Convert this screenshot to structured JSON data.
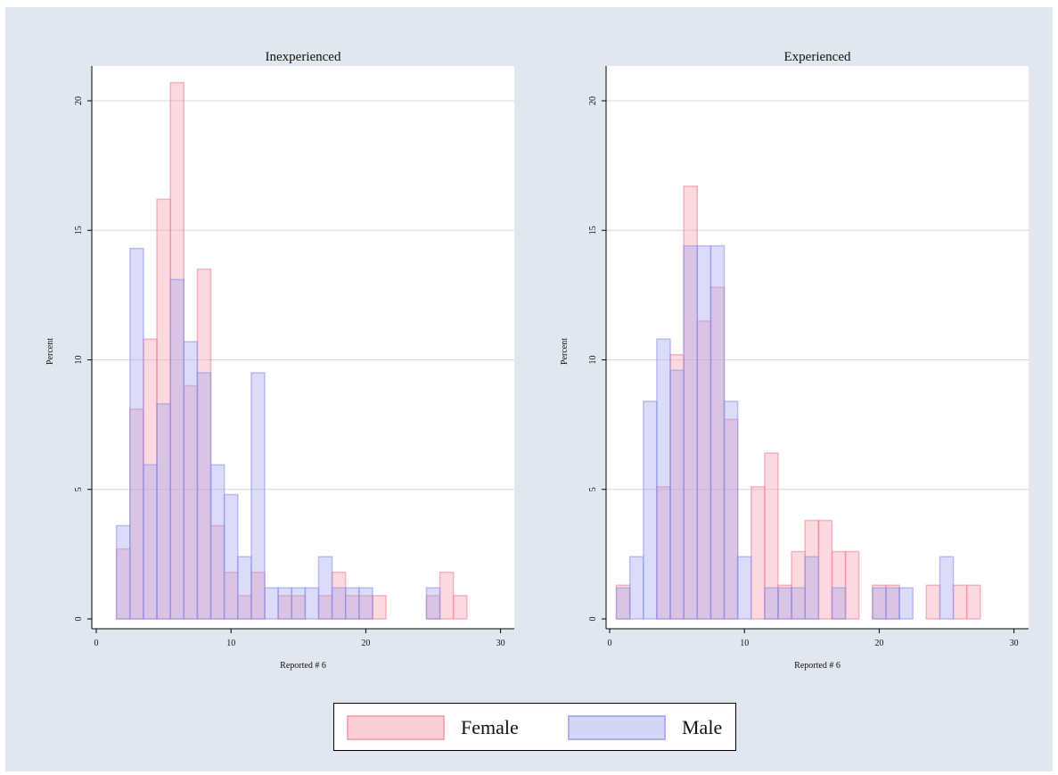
{
  "chart_data": [
    {
      "type": "bar",
      "title": "Inexperienced",
      "xlabel": "Reported # 6",
      "ylabel": "Percent",
      "xlim": [
        0,
        30
      ],
      "ylim": [
        0,
        21
      ],
      "xticks": [
        "0",
        "10",
        "20",
        "30"
      ],
      "yticks": [
        "0",
        "5",
        "10",
        "15",
        "20"
      ],
      "series": [
        {
          "name": "Female",
          "bins": [
            [
              2,
              2.7
            ],
            [
              3,
              8.1
            ],
            [
              4,
              10.8
            ],
            [
              5,
              16.2
            ],
            [
              6,
              20.7
            ],
            [
              7,
              9.0
            ],
            [
              8,
              13.5
            ],
            [
              9,
              3.6
            ],
            [
              10,
              1.8
            ],
            [
              11,
              0.9
            ],
            [
              12,
              1.8
            ],
            [
              14,
              0.9
            ],
            [
              15,
              0.9
            ],
            [
              17,
              0.9
            ],
            [
              18,
              1.8
            ],
            [
              19,
              0.9
            ],
            [
              20,
              0.9
            ],
            [
              21,
              0.9
            ],
            [
              25,
              0.9
            ],
            [
              26,
              1.8
            ],
            [
              27,
              0.9
            ]
          ]
        },
        {
          "name": "Male",
          "bins": [
            [
              2,
              3.6
            ],
            [
              3,
              14.3
            ],
            [
              4,
              5.95
            ],
            [
              5,
              8.3
            ],
            [
              6,
              13.1
            ],
            [
              7,
              10.7
            ],
            [
              8,
              9.5
            ],
            [
              9,
              5.95
            ],
            [
              10,
              4.8
            ],
            [
              11,
              2.4
            ],
            [
              12,
              9.5
            ],
            [
              13,
              1.2
            ],
            [
              14,
              1.2
            ],
            [
              15,
              1.2
            ],
            [
              16,
              1.2
            ],
            [
              17,
              2.4
            ],
            [
              18,
              1.2
            ],
            [
              19,
              1.2
            ],
            [
              20,
              1.2
            ],
            [
              25,
              1.2
            ]
          ]
        }
      ],
      "grid": true
    },
    {
      "type": "bar",
      "title": "Experienced",
      "xlabel": "Reported # 6",
      "ylabel": "Percent",
      "xlim": [
        0,
        30
      ],
      "ylim": [
        0,
        21
      ],
      "xticks": [
        "0",
        "10",
        "20",
        "30"
      ],
      "yticks": [
        "0",
        "5",
        "10",
        "15",
        "20"
      ],
      "series": [
        {
          "name": "Female",
          "bins": [
            [
              1,
              1.3
            ],
            [
              4,
              5.1
            ],
            [
              5,
              10.2
            ],
            [
              6,
              16.7
            ],
            [
              7,
              11.5
            ],
            [
              8,
              12.8
            ],
            [
              9,
              7.7
            ],
            [
              11,
              5.1
            ],
            [
              12,
              6.4
            ],
            [
              13,
              1.3
            ],
            [
              14,
              2.6
            ],
            [
              15,
              3.8
            ],
            [
              16,
              3.8
            ],
            [
              17,
              2.6
            ],
            [
              18,
              2.6
            ],
            [
              20,
              1.3
            ],
            [
              21,
              1.3
            ],
            [
              24,
              1.3
            ],
            [
              26,
              1.3
            ],
            [
              27,
              1.3
            ]
          ]
        },
        {
          "name": "Male",
          "bins": [
            [
              1,
              1.2
            ],
            [
              2,
              2.4
            ],
            [
              3,
              8.4
            ],
            [
              4,
              10.8
            ],
            [
              5,
              9.6
            ],
            [
              6,
              14.4
            ],
            [
              7,
              14.4
            ],
            [
              8,
              14.4
            ],
            [
              9,
              8.4
            ],
            [
              10,
              2.4
            ],
            [
              12,
              1.2
            ],
            [
              13,
              1.2
            ],
            [
              14,
              1.2
            ],
            [
              15,
              2.4
            ],
            [
              17,
              1.2
            ],
            [
              20,
              1.2
            ],
            [
              21,
              1.2
            ],
            [
              22,
              1.2
            ],
            [
              25,
              2.4
            ]
          ]
        }
      ],
      "grid": true
    }
  ],
  "legend": {
    "position": "bottom-center",
    "items": [
      {
        "label": "Female",
        "fill": "#f9cdd3",
        "stroke": "#f4a9b4"
      },
      {
        "label": "Male",
        "fill": "#d3d5f7",
        "stroke": "#aeb1ef"
      }
    ]
  },
  "colors": {
    "background": "#e1e7f0",
    "plot_area": "#ffffff",
    "gridline": "#d5d8e4",
    "female_fill": "rgba(247,160,172,0.40)",
    "female_stroke": "rgba(240,130,148,0.55)",
    "male_fill": "rgba(160,164,240,0.38)",
    "male_stroke": "rgba(140,145,235,0.55)"
  }
}
